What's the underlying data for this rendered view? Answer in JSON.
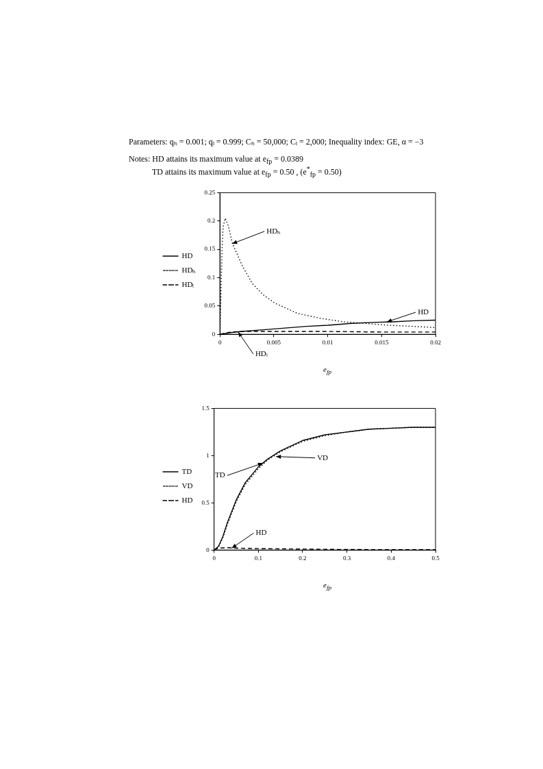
{
  "chart_data": [
    {
      "type": "line",
      "title": "Parameters: qₕ = 0.001;  qₗ = 0.999;  Cₕ = 50,000;  Cₗ = 2,000;  Inequality index: GE, α = −3",
      "annotations": [
        "Notes: HD attains its maximum value at e$_{fp}$ = 0.0389",
        "TD attains its maximum value at e$_{fp}$ = 0.50 , (e$^{*}$$_{fp}$ = 0.50)",
        {
          "text": "HDₕ",
          "x": 0.00115,
          "y": 0.16
        },
        {
          "text": "HD",
          "x": 0.0155,
          "y": 0.022
        },
        {
          "text": "HDₗ",
          "x": 0.0017,
          "y": 0.004
        }
      ],
      "xlabel": "e$_{fp}$",
      "xlim": [
        0,
        0.02
      ],
      "xticks": [
        0,
        0.005,
        0.01,
        0.015,
        0.02
      ],
      "ylim": [
        0,
        0.25
      ],
      "yticks": [
        0,
        0.05,
        0.1,
        0.15,
        0.2,
        0.25
      ],
      "grid": false,
      "legend": "left",
      "marker": "none",
      "series": [
        {
          "name": "HD",
          "color": "#000000",
          "line_style": "solid",
          "x": [
            0,
            0.001,
            0.002,
            0.004,
            0.006,
            0.008,
            0.01,
            0.012,
            0.014,
            0.016,
            0.018,
            0.02
          ],
          "values": [
            0,
            0.003,
            0.005,
            0.008,
            0.011,
            0.014,
            0.016,
            0.019,
            0.021,
            0.022,
            0.024,
            0.025
          ]
        },
        {
          "name": "HDₕ",
          "color": "#000000",
          "line_style": "dotted",
          "x": [
            0,
            0.0001,
            0.0002,
            0.0003,
            0.0005,
            0.0008,
            0.00117,
            0.0021,
            0.003,
            0.004,
            0.0051,
            0.0072,
            0.0094,
            0.0115,
            0.0136,
            0.0157,
            0.0179,
            0.02
          ],
          "values": [
            0,
            0.07,
            0.15,
            0.19,
            0.205,
            0.19,
            0.16,
            0.12,
            0.09,
            0.07,
            0.055,
            0.037,
            0.028,
            0.022,
            0.019,
            0.016,
            0.014,
            0.012
          ]
        },
        {
          "name": "HDₗ",
          "color": "#000000",
          "line_style": "dashed",
          "x": [
            0,
            0.0005,
            0.001,
            0.002,
            0.005,
            0.01,
            0.015,
            0.02
          ],
          "values": [
            0,
            0.002,
            0.004,
            0.005,
            0.005,
            0.005,
            0.004,
            0.004
          ]
        }
      ]
    },
    {
      "type": "line",
      "annotations": [
        {
          "text": "TD",
          "x": 0.11,
          "y": 0.92
        },
        {
          "text": "VD",
          "x": 0.14,
          "y": 0.99
        },
        {
          "text": "HD",
          "x": 0.04,
          "y": 0.02
        }
      ],
      "xlabel": "e$_{fp}$",
      "xlim": [
        0,
        0.5
      ],
      "xticks": [
        0,
        0.1,
        0.2,
        0.3,
        0.4,
        0.5
      ],
      "ylim": [
        0,
        1.5
      ],
      "yticks": [
        0,
        0.5,
        1,
        1.5
      ],
      "grid": false,
      "legend": "left",
      "marker": "none",
      "series": [
        {
          "name": "TD",
          "color": "#000000",
          "line_style": "solid",
          "x": [
            0,
            0.01,
            0.02,
            0.03,
            0.05,
            0.07,
            0.1,
            0.12,
            0.15,
            0.2,
            0.25,
            0.3,
            0.35,
            0.4,
            0.45,
            0.5
          ],
          "values": [
            0,
            0.04,
            0.145,
            0.29,
            0.53,
            0.71,
            0.88,
            0.96,
            1.05,
            1.16,
            1.22,
            1.25,
            1.28,
            1.29,
            1.3,
            1.3
          ]
        },
        {
          "name": "VD",
          "color": "#000000",
          "line_style": "dotted",
          "x": [
            0,
            0.01,
            0.02,
            0.03,
            0.05,
            0.07,
            0.1,
            0.12,
            0.15,
            0.2,
            0.25,
            0.3,
            0.35,
            0.4,
            0.45,
            0.5
          ],
          "values": [
            0,
            0.03,
            0.13,
            0.27,
            0.51,
            0.69,
            0.86,
            0.95,
            1.04,
            1.15,
            1.21,
            1.25,
            1.28,
            1.29,
            1.3,
            1.3
          ]
        },
        {
          "name": "HD",
          "color": "#000000",
          "line_style": "dashed",
          "x": [
            0,
            0.01,
            0.03,
            0.05,
            0.1,
            0.2,
            0.3,
            0.4,
            0.5
          ],
          "values": [
            0,
            0.02,
            0.025,
            0.02,
            0.015,
            0.01,
            0.005,
            0.004,
            0.003
          ]
        }
      ]
    }
  ]
}
